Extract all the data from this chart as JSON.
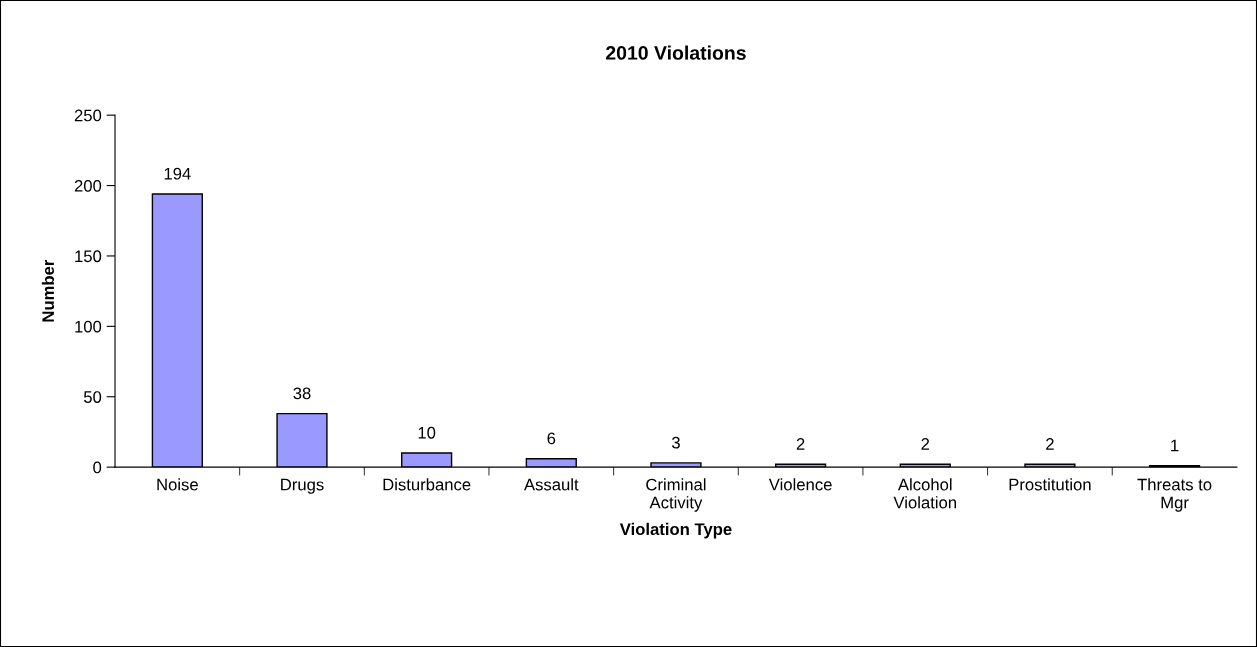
{
  "chart_data": {
    "type": "bar",
    "title": "2010 Violations",
    "xlabel": "Violation Type",
    "ylabel": "Number",
    "categories": [
      "Noise",
      "Drugs",
      "Disturbance",
      "Assault",
      "Criminal\nActivity",
      "Violence",
      "Alcohol\nViolation",
      "Prostitution",
      "Threats to\nMgr"
    ],
    "values": [
      194,
      38,
      10,
      6,
      3,
      2,
      2,
      2,
      1
    ],
    "color": "#9999ff",
    "ylim": [
      0,
      250
    ],
    "yticks": [
      0,
      50,
      100,
      150,
      200,
      250
    ],
    "grid": false,
    "data_labels": true
  }
}
